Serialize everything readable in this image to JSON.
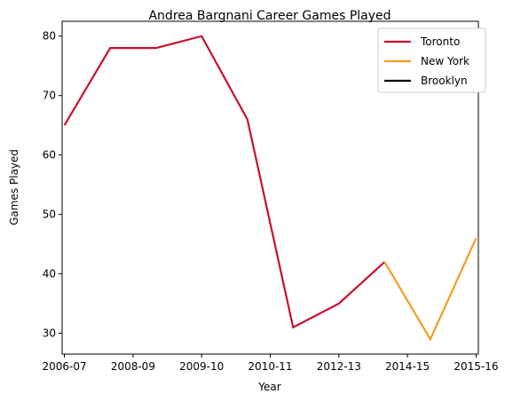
{
  "chart_data": {
    "type": "line",
    "title": "Andrea Bargnani Career Games Played",
    "xlabel": "Year",
    "ylabel": "Games Played",
    "x_tick_labels": [
      "2006-07",
      "2008-09",
      "2009-10",
      "2010-11",
      "2012-13",
      "2014-15",
      "2015-16"
    ],
    "y_ticks": [
      30,
      40,
      50,
      60,
      70,
      80
    ],
    "ylim": [
      26.5,
      82.5
    ],
    "xlim": [
      -0.05,
      9.05
    ],
    "grid": false,
    "legend_position": "top-right",
    "series": [
      {
        "name": "Toronto",
        "color": "#c8102e",
        "x": [
          0,
          1,
          2,
          3,
          4,
          5,
          6,
          7
        ],
        "values": [
          65,
          78,
          78,
          80,
          66,
          31,
          35,
          42
        ]
      },
      {
        "name": "New York",
        "color": "#f39c1f",
        "x": [
          7,
          8,
          9
        ],
        "values": [
          42,
          29,
          46
        ]
      },
      {
        "name": "Brooklyn",
        "color": "#000000",
        "x": [],
        "values": []
      }
    ]
  }
}
